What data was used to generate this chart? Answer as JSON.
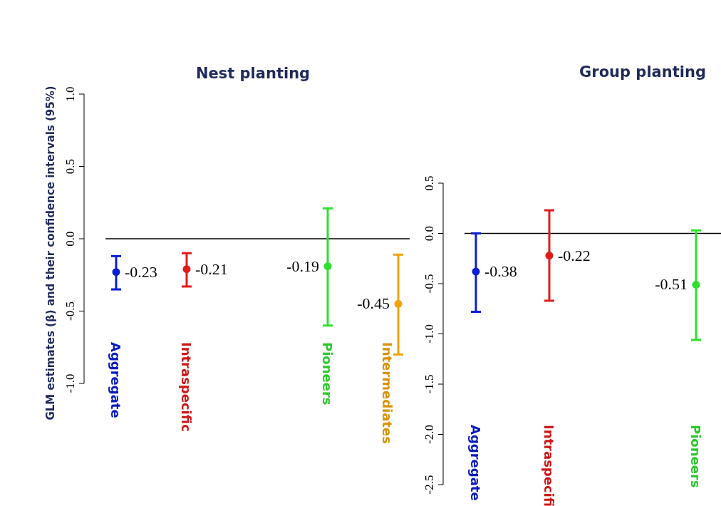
{
  "chart_data": [
    {
      "type": "scatter",
      "title": "Nest planting",
      "ylabel": "GLM estimates (β) and their confidence intervals (95%)",
      "categories": [
        "Aggregate",
        "Intraspecific",
        null,
        "Pioneers",
        "Intermediates"
      ],
      "values": [
        -0.23,
        -0.21,
        null,
        -0.19,
        -0.45
      ],
      "errors": [
        [
          -0.35,
          -0.12
        ],
        [
          -0.33,
          -0.1
        ],
        null,
        [
          -0.6,
          0.21
        ],
        [
          -0.8,
          -0.11
        ]
      ],
      "colors": [
        "#0a1ed2",
        "#e31a1a",
        "#888888",
        "#2ee02e",
        "#f2a20a"
      ],
      "value_labels": [
        "-0.23",
        "-0.21",
        null,
        "-0.19",
        "-0.45"
      ],
      "ylim": [
        -1,
        1
      ],
      "yticks": [
        {
          "value": -1,
          "label": "-1.0"
        },
        {
          "value": -0.5,
          "label": "-0.5"
        },
        {
          "value": 0,
          "label": "0.0"
        },
        {
          "value": 0.5,
          "label": "0.5"
        },
        {
          "value": 1,
          "label": "1.0"
        }
      ],
      "ref_lines": [
        {
          "axis": "y",
          "value": 0,
          "color": "#000000"
        }
      ],
      "marker": "circle",
      "grid": false
    },
    {
      "type": "scatter",
      "title": "Group planting",
      "categories": [
        "Aggregate",
        "Intraspecifi",
        null,
        "Pioneers"
      ],
      "values": [
        -0.38,
        -0.22,
        null,
        -0.51
      ],
      "errors": [
        [
          -0.78,
          0.0
        ],
        [
          -0.67,
          0.23
        ],
        null,
        [
          -1.06,
          0.03
        ]
      ],
      "colors": [
        "#0a1ed2",
        "#e31a1a",
        "#888888",
        "#2ee02e"
      ],
      "value_labels": [
        "-0.38",
        "-0.22",
        null,
        "-0.51"
      ],
      "ylim": [
        -2.5,
        0.5
      ],
      "yticks": [
        {
          "value": -2.5,
          "label": "-2.5"
        },
        {
          "value": -2,
          "label": "-2.0"
        },
        {
          "value": -1.5,
          "label": "-1.5"
        },
        {
          "value": -1,
          "label": "-1.0"
        },
        {
          "value": -0.5,
          "label": "-0.5"
        },
        {
          "value": 0,
          "label": "0.0"
        },
        {
          "value": 0.5,
          "label": "0.5"
        }
      ],
      "ref_lines": [
        {
          "axis": "y",
          "value": 0,
          "color": "#000000"
        }
      ],
      "marker": "circle",
      "grid": false
    }
  ]
}
